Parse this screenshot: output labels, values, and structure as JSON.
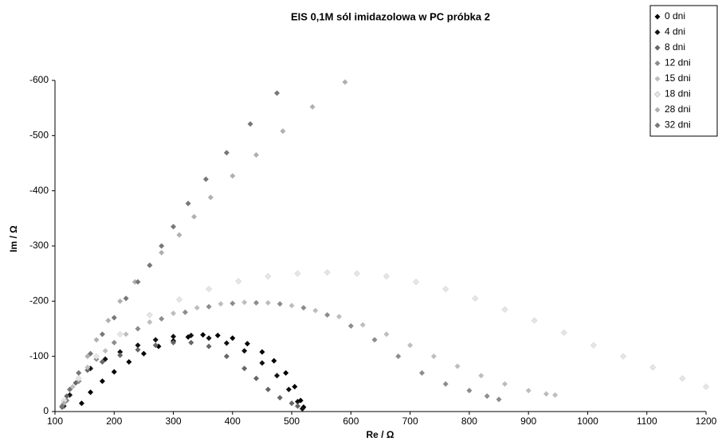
{
  "chart_data": {
    "type": "scatter",
    "title": "EIS 0,1M sól imidazolowa w PC próbka 2",
    "x_label": "Re / Ω",
    "y_label": "Im / Ω",
    "xlim": [
      100,
      1200
    ],
    "xticks": [
      100,
      200,
      300,
      400,
      500,
      600,
      700,
      800,
      900,
      1000,
      1100,
      1200
    ],
    "ylim": [
      0,
      -600
    ],
    "yticks": [
      0,
      -100,
      -200,
      -300,
      -400,
      -500,
      -600
    ],
    "grid": false,
    "legend": "top-right",
    "series": [
      {
        "name": "0 dni",
        "color": "#000000",
        "x": [
          145,
          160,
          180,
          200,
          225,
          250,
          275,
          300,
          325,
          350,
          375,
          400,
          425,
          450,
          470,
          490,
          505,
          515,
          520
        ],
        "values": [
          -15,
          -35,
          -55,
          -72,
          -90,
          -105,
          -118,
          -128,
          -135,
          -139,
          -138,
          -133,
          -123,
          -108,
          -92,
          -70,
          -45,
          -20,
          -8
        ]
      },
      {
        "name": "4 dni",
        "color": "#111111",
        "x": [
          115,
          125,
          140,
          160,
          185,
          210,
          240,
          270,
          300,
          330,
          360,
          390,
          420,
          450,
          475,
          495,
          510,
          518
        ],
        "values": [
          -10,
          -30,
          -55,
          -78,
          -95,
          -108,
          -120,
          -130,
          -136,
          -138,
          -133,
          -124,
          -110,
          -88,
          -65,
          -40,
          -18,
          -5
        ]
      },
      {
        "name": "8 dni",
        "color": "#666666",
        "x": [
          112,
          120,
          135,
          155,
          180,
          210,
          240,
          270,
          300,
          330,
          360,
          390,
          420,
          440,
          460,
          480,
          500,
          510
        ],
        "values": [
          -8,
          -28,
          -52,
          -75,
          -90,
          -102,
          -112,
          -120,
          -125,
          -125,
          -118,
          -100,
          -78,
          -60,
          -40,
          -25,
          -15,
          -10
        ]
      },
      {
        "name": "12 dni",
        "color": "#8c8c8c",
        "x": [
          120,
          140,
          170,
          200,
          240,
          280,
          320,
          360,
          400,
          440,
          480,
          520,
          560,
          600,
          640,
          680,
          720,
          760,
          800,
          830,
          850
        ],
        "values": [
          -20,
          -55,
          -95,
          -125,
          -150,
          -168,
          -180,
          -190,
          -196,
          -197,
          -195,
          -188,
          -175,
          -155,
          -130,
          -100,
          -70,
          -50,
          -38,
          -28,
          -22
        ]
      },
      {
        "name": "15 dni",
        "color": "#bdbdbd",
        "x": [
          115,
          130,
          155,
          185,
          220,
          260,
          300,
          340,
          380,
          420,
          460,
          500,
          540,
          580,
          620,
          660,
          700,
          740,
          780,
          820,
          860,
          900,
          930,
          945
        ],
        "values": [
          -15,
          -45,
          -80,
          -110,
          -140,
          -162,
          -178,
          -188,
          -195,
          -198,
          -197,
          -192,
          -183,
          -172,
          -157,
          -140,
          -120,
          -100,
          -82,
          -65,
          -50,
          -38,
          -32,
          -30
        ]
      },
      {
        "name": "18 dni",
        "color": "#e6e6e6",
        "x": [
          115,
          140,
          170,
          210,
          260,
          310,
          360,
          410,
          460,
          510,
          560,
          610,
          660,
          710,
          760,
          810,
          860,
          910,
          960,
          1010,
          1060,
          1110,
          1160,
          1200
        ],
        "values": [
          -20,
          -60,
          -100,
          -140,
          -175,
          -203,
          -222,
          -236,
          -245,
          -250,
          -252,
          -250,
          -245,
          -235,
          -222,
          -205,
          -185,
          -165,
          -143,
          -120,
          -100,
          -80,
          -60,
          -45
        ]
      },
      {
        "name": "28 dni",
        "color": "#b0b0b0",
        "x": [
          115,
          125,
          140,
          155,
          170,
          190,
          210,
          235,
          260,
          280,
          310,
          335,
          363,
          400,
          440,
          485,
          535,
          590
        ],
        "values": [
          -15,
          -40,
          -70,
          -100,
          -130,
          -165,
          -200,
          -235,
          -265,
          -288,
          -320,
          -353,
          -388,
          -427,
          -465,
          -508,
          -552,
          -597
        ]
      },
      {
        "name": "32 dni",
        "color": "#777777",
        "x": [
          112,
          125,
          140,
          160,
          180,
          200,
          220,
          240,
          260,
          280,
          300,
          325,
          355,
          390,
          430,
          475
        ],
        "values": [
          -10,
          -40,
          -70,
          -105,
          -140,
          -170,
          -205,
          -235,
          -265,
          -300,
          -335,
          -377,
          -421,
          -469,
          -521,
          -577
        ]
      }
    ]
  }
}
